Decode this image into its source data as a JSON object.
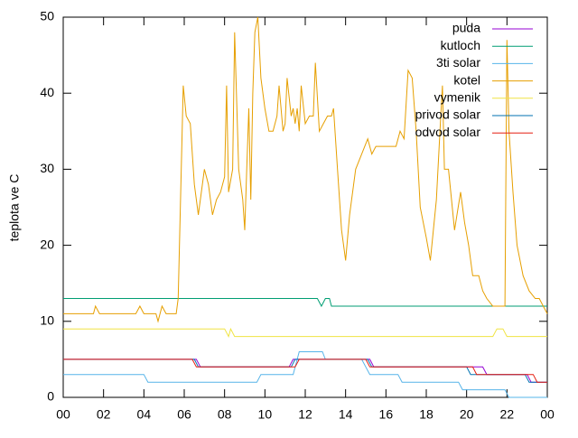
{
  "chart_data": {
    "type": "line",
    "ylabel": "teplota ve C",
    "xlim": [
      0,
      24
    ],
    "ylim": [
      0,
      50
    ],
    "xticks": [
      {
        "value": 0,
        "label": "00"
      },
      {
        "value": 2,
        "label": "02"
      },
      {
        "value": 4,
        "label": "04"
      },
      {
        "value": 6,
        "label": "06"
      },
      {
        "value": 8,
        "label": "08"
      },
      10,
      12,
      14,
      16,
      18,
      20,
      22,
      {
        "value": 24,
        "label": "00"
      }
    ],
    "yticks": [
      0,
      10,
      20,
      30,
      40,
      50
    ],
    "grid": false,
    "legend": "top-right",
    "series": [
      {
        "name": "puda",
        "color": "#9400d3",
        "x": [
          0,
          6.6,
          6.8,
          11.2,
          11.4,
          15.2,
          15.4,
          20.8,
          21.0,
          23.0,
          23.2,
          24
        ],
        "values": [
          5,
          5,
          4,
          4,
          5,
          5,
          4,
          4,
          3,
          3,
          2,
          2
        ]
      },
      {
        "name": "kutloch",
        "color": "#009e73",
        "x": [
          0,
          12.6,
          12.8,
          13.0,
          13.2,
          13.3,
          24
        ],
        "values": [
          13,
          13,
          12,
          13,
          13,
          12,
          12
        ]
      },
      {
        "name": "3ti solar",
        "color": "#56b4e9",
        "x": [
          0,
          4.0,
          4.2,
          9.6,
          9.8,
          11.4,
          11.7,
          12.85,
          13.0,
          14.8,
          15.0,
          15.2,
          16.6,
          16.8,
          19.6,
          19.8,
          21.9,
          22.1,
          24
        ],
        "values": [
          3,
          3,
          2,
          2,
          3,
          3,
          6,
          6,
          5,
          5,
          4,
          3,
          3,
          2,
          2,
          1,
          1,
          0,
          0
        ]
      },
      {
        "name": "kotel",
        "color": "#e69f00",
        "x": [
          0,
          1.5,
          1.6,
          1.8,
          3.6,
          3.8,
          4.0,
          4.6,
          4.7,
          4.9,
          5.1,
          5.6,
          5.7,
          5.95,
          6.1,
          6.3,
          6.5,
          6.7,
          6.9,
          7.0,
          7.2,
          7.4,
          7.6,
          7.8,
          8.0,
          8.1,
          8.2,
          8.4,
          8.5,
          8.7,
          8.9,
          9.0,
          9.1,
          9.2,
          9.3,
          9.4,
          9.5,
          9.65,
          9.8,
          10.0,
          10.2,
          10.4,
          10.6,
          10.7,
          10.9,
          11.0,
          11.1,
          11.3,
          11.4,
          11.5,
          11.6,
          11.7,
          11.8,
          12.0,
          12.2,
          12.4,
          12.5,
          12.7,
          12.9,
          13.1,
          13.3,
          13.4,
          13.6,
          13.8,
          14.0,
          14.2,
          14.5,
          14.8,
          15.1,
          15.3,
          15.5,
          16.0,
          16.5,
          16.7,
          16.9,
          17.1,
          17.3,
          17.5,
          17.7,
          18.0,
          18.2,
          18.5,
          18.7,
          18.8,
          18.9,
          19.1,
          19.4,
          19.7,
          19.9,
          20.1,
          20.3,
          20.6,
          20.8,
          21.0,
          21.3,
          21.5,
          21.9,
          22.0,
          22.1,
          22.3,
          22.5,
          22.8,
          23.1,
          23.4,
          23.6,
          23.8,
          24
        ],
        "values": [
          11,
          11,
          12,
          11,
          11,
          12,
          11,
          11,
          10,
          12,
          11,
          11,
          13,
          41,
          37,
          36,
          28,
          24,
          28,
          30,
          28,
          24,
          26,
          27,
          29,
          41,
          27,
          30,
          48,
          30,
          26,
          22,
          30,
          38,
          26,
          40,
          48,
          50,
          42,
          38,
          35,
          35,
          37,
          41,
          35,
          36,
          42,
          37,
          38,
          36,
          38,
          35,
          41,
          36,
          37,
          37,
          44,
          35,
          36,
          37,
          37,
          38,
          30,
          22,
          18,
          24,
          30,
          32,
          34,
          32,
          33,
          33,
          33,
          35,
          34,
          43,
          42,
          35,
          25,
          21,
          18,
          26,
          36,
          41,
          30,
          30,
          22,
          27,
          23,
          20,
          16,
          16,
          14,
          13,
          12,
          12,
          12,
          47,
          35,
          27,
          20,
          16,
          14,
          13,
          13,
          12,
          11
        ]
      },
      {
        "name": "vymenik",
        "color": "#f0e442",
        "x": [
          0,
          8.0,
          8.2,
          8.3,
          8.5,
          21.3,
          21.5,
          21.8,
          22.0,
          24
        ],
        "values": [
          9,
          9,
          8,
          9,
          8,
          8,
          9,
          9,
          8,
          8
        ]
      },
      {
        "name": "privod solar",
        "color": "#0072b2",
        "x": [
          0,
          6.5,
          6.7,
          11.3,
          11.5,
          15.1,
          15.3,
          20.0,
          20.2,
          22.9,
          23.1,
          24
        ],
        "values": [
          5,
          5,
          4,
          4,
          5,
          5,
          4,
          4,
          3,
          3,
          2,
          2
        ]
      },
      {
        "name": "odvod solar",
        "color": "#e51e10",
        "x": [
          0,
          6.4,
          6.6,
          11.5,
          11.7,
          15.0,
          15.2,
          20.3,
          20.5,
          23.3,
          23.5,
          24
        ],
        "values": [
          5,
          5,
          4,
          4,
          5,
          5,
          4,
          4,
          3,
          3,
          2,
          2
        ]
      }
    ]
  }
}
